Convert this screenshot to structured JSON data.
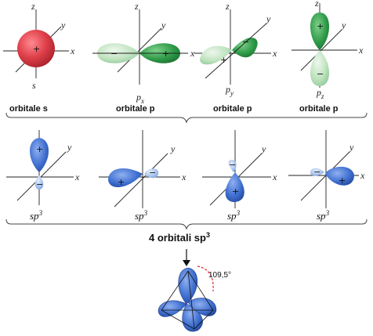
{
  "top_row": {
    "orbitals": [
      {
        "label": "orbitale s",
        "subscript_base": "s",
        "subscript": ""
      },
      {
        "label": "orbitale p",
        "subscript_base": "p",
        "subscript": "x"
      },
      {
        "label": "orbitale p",
        "subscript_base": "p",
        "subscript": "y"
      },
      {
        "label": "orbitale p",
        "subscript_base": "p",
        "subscript": "z"
      }
    ]
  },
  "axes": {
    "x": "x",
    "y": "y",
    "z": "z"
  },
  "signs": {
    "plus": "+",
    "minus": "−"
  },
  "hybrid_row": {
    "labels": [
      {
        "base": "sp",
        "exp": "3"
      },
      {
        "base": "sp",
        "exp": "3"
      },
      {
        "base": "sp",
        "exp": "3"
      },
      {
        "base": "sp",
        "exp": "3"
      }
    ]
  },
  "summary": {
    "prefix": "4 orbitali sp",
    "exp": "3"
  },
  "angle_label": "109,5°",
  "colors": {
    "s_orbital": "#e0404a",
    "p_orbital_light": "#bfe3bf",
    "p_orbital_dark": "#2e9a48",
    "sp3_dark": "#3f6fd0",
    "sp3_light": "#a9c4ee",
    "angle_arc": "#e03030"
  }
}
